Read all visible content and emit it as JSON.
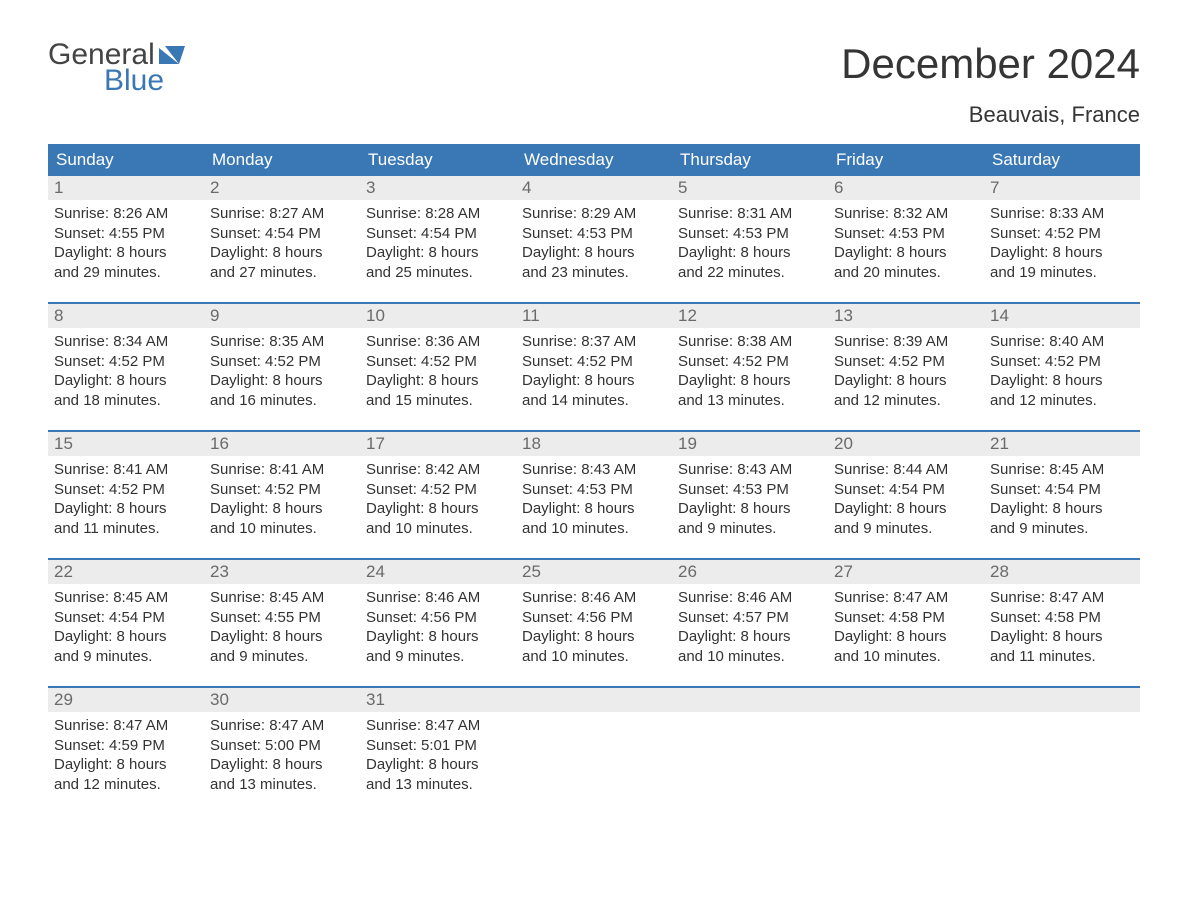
{
  "logo": {
    "line1": "General",
    "line2": "Blue",
    "mark_color": "#3a78b5"
  },
  "title": "December 2024",
  "subtitle": "Beauvais, France",
  "colors": {
    "header_bg": "#3a78b5",
    "header_text": "#ffffff",
    "daynum_bg": "#ececec",
    "daynum_text": "#6a6a6a",
    "body_text": "#333333",
    "rule": "#3a78b5",
    "page_bg": "#ffffff"
  },
  "weekdays": [
    "Sunday",
    "Monday",
    "Tuesday",
    "Wednesday",
    "Thursday",
    "Friday",
    "Saturday"
  ],
  "weeks": [
    [
      {
        "day": "1",
        "sunrise": "Sunrise: 8:26 AM",
        "sunset": "Sunset: 4:55 PM",
        "daylight1": "Daylight: 8 hours",
        "daylight2": "and 29 minutes."
      },
      {
        "day": "2",
        "sunrise": "Sunrise: 8:27 AM",
        "sunset": "Sunset: 4:54 PM",
        "daylight1": "Daylight: 8 hours",
        "daylight2": "and 27 minutes."
      },
      {
        "day": "3",
        "sunrise": "Sunrise: 8:28 AM",
        "sunset": "Sunset: 4:54 PM",
        "daylight1": "Daylight: 8 hours",
        "daylight2": "and 25 minutes."
      },
      {
        "day": "4",
        "sunrise": "Sunrise: 8:29 AM",
        "sunset": "Sunset: 4:53 PM",
        "daylight1": "Daylight: 8 hours",
        "daylight2": "and 23 minutes."
      },
      {
        "day": "5",
        "sunrise": "Sunrise: 8:31 AM",
        "sunset": "Sunset: 4:53 PM",
        "daylight1": "Daylight: 8 hours",
        "daylight2": "and 22 minutes."
      },
      {
        "day": "6",
        "sunrise": "Sunrise: 8:32 AM",
        "sunset": "Sunset: 4:53 PM",
        "daylight1": "Daylight: 8 hours",
        "daylight2": "and 20 minutes."
      },
      {
        "day": "7",
        "sunrise": "Sunrise: 8:33 AM",
        "sunset": "Sunset: 4:52 PM",
        "daylight1": "Daylight: 8 hours",
        "daylight2": "and 19 minutes."
      }
    ],
    [
      {
        "day": "8",
        "sunrise": "Sunrise: 8:34 AM",
        "sunset": "Sunset: 4:52 PM",
        "daylight1": "Daylight: 8 hours",
        "daylight2": "and 18 minutes."
      },
      {
        "day": "9",
        "sunrise": "Sunrise: 8:35 AM",
        "sunset": "Sunset: 4:52 PM",
        "daylight1": "Daylight: 8 hours",
        "daylight2": "and 16 minutes."
      },
      {
        "day": "10",
        "sunrise": "Sunrise: 8:36 AM",
        "sunset": "Sunset: 4:52 PM",
        "daylight1": "Daylight: 8 hours",
        "daylight2": "and 15 minutes."
      },
      {
        "day": "11",
        "sunrise": "Sunrise: 8:37 AM",
        "sunset": "Sunset: 4:52 PM",
        "daylight1": "Daylight: 8 hours",
        "daylight2": "and 14 minutes."
      },
      {
        "day": "12",
        "sunrise": "Sunrise: 8:38 AM",
        "sunset": "Sunset: 4:52 PM",
        "daylight1": "Daylight: 8 hours",
        "daylight2": "and 13 minutes."
      },
      {
        "day": "13",
        "sunrise": "Sunrise: 8:39 AM",
        "sunset": "Sunset: 4:52 PM",
        "daylight1": "Daylight: 8 hours",
        "daylight2": "and 12 minutes."
      },
      {
        "day": "14",
        "sunrise": "Sunrise: 8:40 AM",
        "sunset": "Sunset: 4:52 PM",
        "daylight1": "Daylight: 8 hours",
        "daylight2": "and 12 minutes."
      }
    ],
    [
      {
        "day": "15",
        "sunrise": "Sunrise: 8:41 AM",
        "sunset": "Sunset: 4:52 PM",
        "daylight1": "Daylight: 8 hours",
        "daylight2": "and 11 minutes."
      },
      {
        "day": "16",
        "sunrise": "Sunrise: 8:41 AM",
        "sunset": "Sunset: 4:52 PM",
        "daylight1": "Daylight: 8 hours",
        "daylight2": "and 10 minutes."
      },
      {
        "day": "17",
        "sunrise": "Sunrise: 8:42 AM",
        "sunset": "Sunset: 4:52 PM",
        "daylight1": "Daylight: 8 hours",
        "daylight2": "and 10 minutes."
      },
      {
        "day": "18",
        "sunrise": "Sunrise: 8:43 AM",
        "sunset": "Sunset: 4:53 PM",
        "daylight1": "Daylight: 8 hours",
        "daylight2": "and 10 minutes."
      },
      {
        "day": "19",
        "sunrise": "Sunrise: 8:43 AM",
        "sunset": "Sunset: 4:53 PM",
        "daylight1": "Daylight: 8 hours",
        "daylight2": "and 9 minutes."
      },
      {
        "day": "20",
        "sunrise": "Sunrise: 8:44 AM",
        "sunset": "Sunset: 4:54 PM",
        "daylight1": "Daylight: 8 hours",
        "daylight2": "and 9 minutes."
      },
      {
        "day": "21",
        "sunrise": "Sunrise: 8:45 AM",
        "sunset": "Sunset: 4:54 PM",
        "daylight1": "Daylight: 8 hours",
        "daylight2": "and 9 minutes."
      }
    ],
    [
      {
        "day": "22",
        "sunrise": "Sunrise: 8:45 AM",
        "sunset": "Sunset: 4:54 PM",
        "daylight1": "Daylight: 8 hours",
        "daylight2": "and 9 minutes."
      },
      {
        "day": "23",
        "sunrise": "Sunrise: 8:45 AM",
        "sunset": "Sunset: 4:55 PM",
        "daylight1": "Daylight: 8 hours",
        "daylight2": "and 9 minutes."
      },
      {
        "day": "24",
        "sunrise": "Sunrise: 8:46 AM",
        "sunset": "Sunset: 4:56 PM",
        "daylight1": "Daylight: 8 hours",
        "daylight2": "and 9 minutes."
      },
      {
        "day": "25",
        "sunrise": "Sunrise: 8:46 AM",
        "sunset": "Sunset: 4:56 PM",
        "daylight1": "Daylight: 8 hours",
        "daylight2": "and 10 minutes."
      },
      {
        "day": "26",
        "sunrise": "Sunrise: 8:46 AM",
        "sunset": "Sunset: 4:57 PM",
        "daylight1": "Daylight: 8 hours",
        "daylight2": "and 10 minutes."
      },
      {
        "day": "27",
        "sunrise": "Sunrise: 8:47 AM",
        "sunset": "Sunset: 4:58 PM",
        "daylight1": "Daylight: 8 hours",
        "daylight2": "and 10 minutes."
      },
      {
        "day": "28",
        "sunrise": "Sunrise: 8:47 AM",
        "sunset": "Sunset: 4:58 PM",
        "daylight1": "Daylight: 8 hours",
        "daylight2": "and 11 minutes."
      }
    ],
    [
      {
        "day": "29",
        "sunrise": "Sunrise: 8:47 AM",
        "sunset": "Sunset: 4:59 PM",
        "daylight1": "Daylight: 8 hours",
        "daylight2": "and 12 minutes."
      },
      {
        "day": "30",
        "sunrise": "Sunrise: 8:47 AM",
        "sunset": "Sunset: 5:00 PM",
        "daylight1": "Daylight: 8 hours",
        "daylight2": "and 13 minutes."
      },
      {
        "day": "31",
        "sunrise": "Sunrise: 8:47 AM",
        "sunset": "Sunset: 5:01 PM",
        "daylight1": "Daylight: 8 hours",
        "daylight2": "and 13 minutes."
      },
      {
        "day": "",
        "sunrise": "",
        "sunset": "",
        "daylight1": "",
        "daylight2": ""
      },
      {
        "day": "",
        "sunrise": "",
        "sunset": "",
        "daylight1": "",
        "daylight2": ""
      },
      {
        "day": "",
        "sunrise": "",
        "sunset": "",
        "daylight1": "",
        "daylight2": ""
      },
      {
        "day": "",
        "sunrise": "",
        "sunset": "",
        "daylight1": "",
        "daylight2": ""
      }
    ]
  ]
}
